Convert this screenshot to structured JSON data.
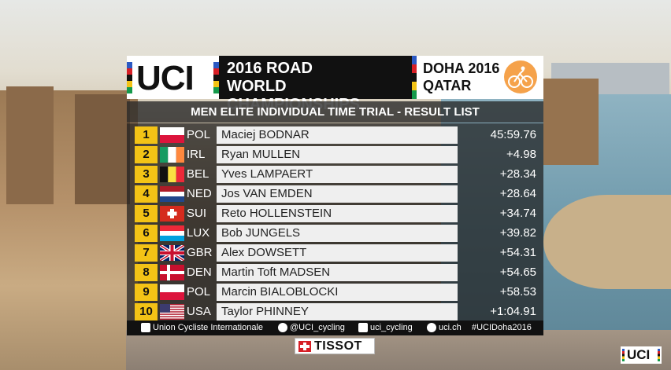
{
  "header": {
    "logo_text": "UCI",
    "title_line1": "2016 ROAD",
    "title_line2": "WORLD CHAMPIONSHIPS",
    "city_line1": "DOHA 2016",
    "city_line2": "QATAR"
  },
  "subtitle": "MEN ELITE INDIVIDUAL TIME TRIAL - RESULT LIST",
  "results": [
    {
      "pos": "1",
      "nat": "POL",
      "name": "Maciej BODNAR",
      "time": "45:59.76",
      "flag": "pol"
    },
    {
      "pos": "2",
      "nat": "IRL",
      "name": "Ryan MULLEN",
      "time": "+4.98",
      "flag": "irl"
    },
    {
      "pos": "3",
      "nat": "BEL",
      "name": "Yves LAMPAERT",
      "time": "+28.34",
      "flag": "bel"
    },
    {
      "pos": "4",
      "nat": "NED",
      "name": "Jos VAN EMDEN",
      "time": "+28.64",
      "flag": "ned"
    },
    {
      "pos": "5",
      "nat": "SUI",
      "name": "Reto HOLLENSTEIN",
      "time": "+34.74",
      "flag": "sui"
    },
    {
      "pos": "6",
      "nat": "LUX",
      "name": "Bob JUNGELS",
      "time": "+39.82",
      "flag": "lux"
    },
    {
      "pos": "7",
      "nat": "GBR",
      "name": "Alex DOWSETT",
      "time": "+54.31",
      "flag": "gbr"
    },
    {
      "pos": "8",
      "nat": "DEN",
      "name": "Martin Toft MADSEN",
      "time": "+54.65",
      "flag": "den"
    },
    {
      "pos": "9",
      "nat": "POL",
      "name": "Marcin BIALOBLOCKI",
      "time": "+58.53",
      "flag": "pol"
    },
    {
      "pos": "10",
      "nat": "USA",
      "name": "Taylor PHINNEY",
      "time": "+1:04.91",
      "flag": "usa"
    }
  ],
  "footer": {
    "facebook": "Union Cycliste Internationale",
    "twitter": "@UCI_cycling",
    "instagram": "uci_cycling",
    "web": "uci.ch",
    "hashtag": "#UCIDoha2016"
  },
  "sponsor": "TISSOT",
  "corner_logo": "UCI",
  "colors": {
    "position_bg": "#f3c316",
    "header_bg": "#111111",
    "name_bg": "#efefef",
    "doha_orange": "#f5a24b"
  }
}
